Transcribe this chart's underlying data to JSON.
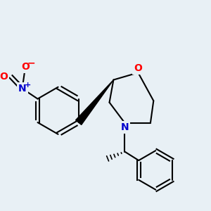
{
  "background_color": "#e8f0f5",
  "line_color": "#000000",
  "atom_colors": {
    "O": "#ff0000",
    "N_blue": "#0000cd"
  },
  "line_width": 1.5,
  "font_size": 10
}
